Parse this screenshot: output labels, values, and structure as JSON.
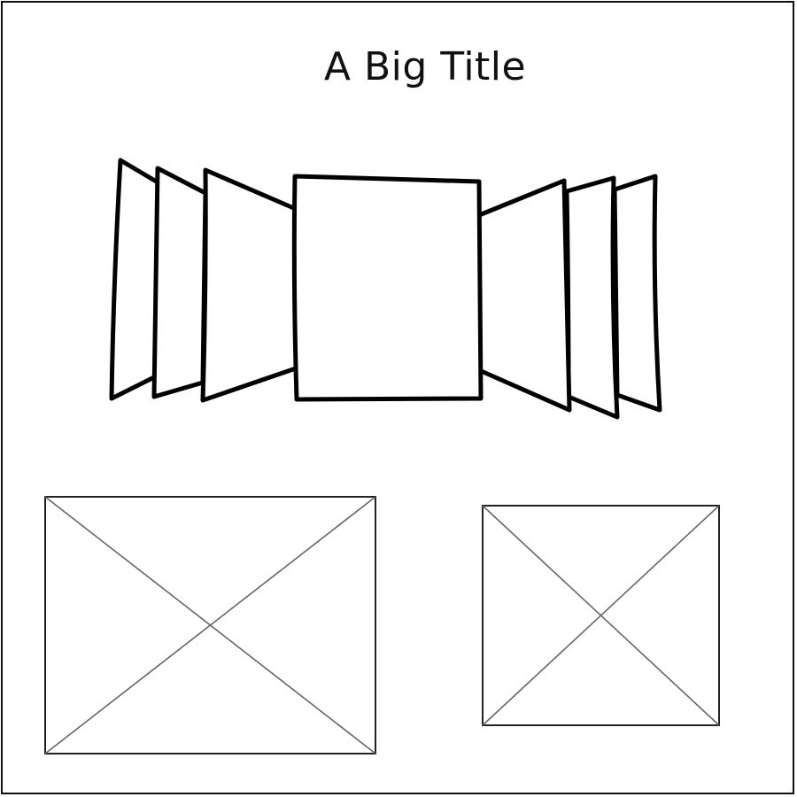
{
  "page": {
    "title": "A Big Title"
  },
  "carousel": {
    "slide_count": 7,
    "active_slide": 4
  },
  "media": {
    "items": [
      {
        "kind": "image-placeholder"
      },
      {
        "kind": "image-placeholder"
      }
    ]
  }
}
